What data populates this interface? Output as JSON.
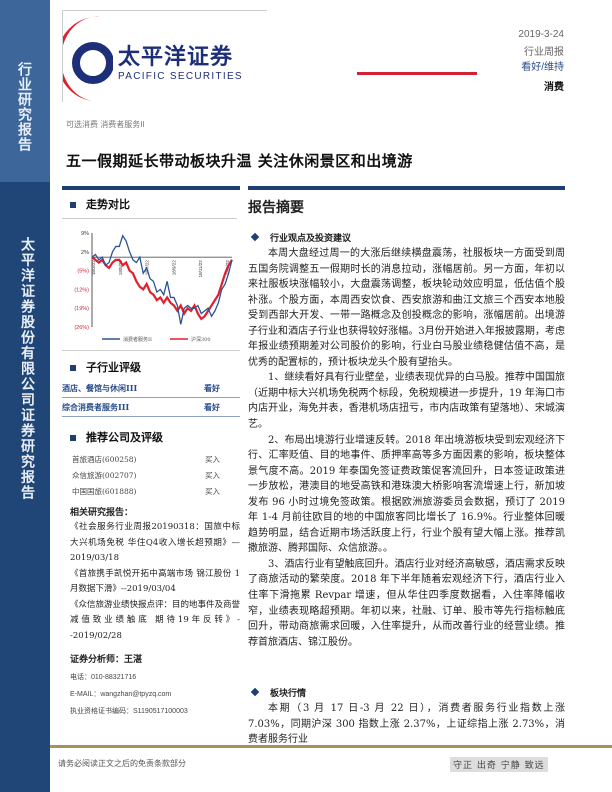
{
  "sidebar": {
    "top_label": "行业研究报告",
    "bottom_label": "太平洋证券股份有限公司证券研究报告"
  },
  "logo": {
    "cn": "太平洋证券",
    "en": "PACIFIC SECURITIES"
  },
  "meta": {
    "date": "2019-3-24",
    "type": "行业周报",
    "rating": "看好/维持",
    "sector": "消费"
  },
  "colors": {
    "brand_blue": "#1f4677",
    "accent_red": "#d32036",
    "rating_blue": "#2a4d8a"
  },
  "breadcrumb": "可选消费 消费者服务II",
  "title": "五一假期延长带动板块升温 关注休闲景区和出境游",
  "left": {
    "trend_title": "走势对比",
    "subindustry_title": "子行业评级",
    "subindustries": [
      {
        "name": "酒店、餐馆与休闲III",
        "rating": "看好"
      },
      {
        "name": "综合消费者服务III",
        "rating": "看好"
      }
    ],
    "recommend_title": "推荐公司及评级",
    "companies": [
      {
        "name": "首旅酒店(600258)",
        "rating": "买入"
      },
      {
        "name": "众信旅游(002707)",
        "rating": "买入"
      },
      {
        "name": "中国国旅(601888)",
        "rating": "买入"
      }
    ],
    "reports_title": "相关研究报告：",
    "reports": [
      "《社会服务行业周报20190318：国旅中标大兴机场免税 华住Q4收入增长超预期》—2019/03/18",
      "《首旅携手凯悦开拓中高端市场 锦江股份 1 月数据下滑》--2019/03/04",
      "《众信旅游业绩快报点评：目的地事件及商誉减值致业绩触底 期待19年反转》--2019/02/28"
    ],
    "analyst_title": "证券分析师：王湛",
    "phone": "电话：010-88321716",
    "email": "E-MAIL：wangzhan@tpyzq.com",
    "cert": "执业资格证书编码：S1190517100003"
  },
  "chart_data": {
    "type": "line",
    "x_ticks": [
      "18/3/22",
      "18/5/22",
      "18/7/22",
      "18/9/22",
      "18/11/22",
      "19/1/22"
    ],
    "y_ticks": [
      "9%",
      "2%",
      "(5%)",
      "(12%)",
      "(19%)",
      "(26%)"
    ],
    "ylim": [
      -26,
      9
    ],
    "series": [
      {
        "name": "消费者服务II",
        "color": "#2a5594",
        "values": [
          0,
          1,
          -1,
          0,
          -3,
          -2,
          2,
          4,
          4,
          8,
          6,
          2,
          -1,
          -2,
          0,
          -6,
          -4,
          -8,
          -9,
          -13,
          -12,
          -14,
          -9,
          -15,
          -15,
          -18,
          -25,
          -19,
          -18,
          -19,
          -19,
          -18,
          -21,
          -20,
          -19,
          -22,
          -20,
          -17,
          -12,
          -10,
          -6,
          -1
        ]
      },
      {
        "name": "沪深300",
        "color": "#e0202e",
        "values": [
          0,
          -1,
          -2,
          -1,
          -3,
          -4,
          -2,
          -1,
          -1,
          -3,
          -2,
          -5,
          -6,
          -9,
          -11,
          -12,
          -10,
          -13,
          -14,
          -16,
          -15,
          -17,
          -15,
          -17,
          -18,
          -20,
          -18,
          -21,
          -19,
          -20,
          -18,
          -21,
          -23,
          -22,
          -20,
          -18,
          -16,
          -14,
          -10,
          -6,
          -3,
          -1
        ]
      }
    ]
  },
  "right": {
    "section_title": "报告摘要",
    "sub1": "行业观点及投资建议",
    "paras": [
      "本周大盘经过周一的大涨后继续横盘震荡，社服板块一方面受到周五国务院调整五一假期时长的消息拉动，涨幅居前。另一方面，年初以来社服板块涨幅较小，大盘震荡调整，板块轮动效应明显，低估值个股补涨。个股方面，本周西安饮食、西安旅游和曲江文旅三个西安本地股受到西部大开发、一带一路概念及创投概念的影响，涨幅居前。出境游子行业和酒店子行业也获得较好涨幅。3月份开始进入年报披露期，考虑年报业绩预期差对公司股价的影响，行业白马股业绩稳健估值不高，是优秀的配置标的，预计板块龙头个股有望抬头。",
      "1、继续看好具有行业壁垒，业绩表现优异的白马股。推荐中国国旅（近期中标大兴机场免税两个标段，免税规模进一步提升，19 年海口市内店开业，海免并表，香港机场店扭亏，市内店政策有望落地）、宋城演艺。",
      "2、布局出境游行业增速反转。2018 年出境游板块受到宏观经济下行、汇率贬值、目的地事件、质押率高等多方面因素的影响，板块整体景气度不高。2019 年泰国免签证费政策促客流回升，日本签证政策进一步放松，港澳目的地受高铁和港珠澳大桥影响客流增速上行，新加坡发布 96 小时过境免签政策。根据欧洲旅游委员会数据，预订了 2019 年 1-4 月前往欧目的地的中国旅客同比增长了 16.9%。行业整体回暖趋势明显，结合近期市场活跃度上行，行业个股有望大幅上涨。推荐凯撒旅游、腾邦国际、众信旅游。。",
      "3、酒店行业有望触底回升。酒店行业对经济高敏感，酒店需求反映了商旅活动的繁荣度。2018 年下半年随着宏观经济下行，酒店行业入住率下滑拖累 Revpar 增速，但从华住四季度数据看，入住率降幅收窄，业绩表现略超预期。年初以来，社融、订单、股市等先行指标触底回升，带动商旅需求回暖，入住率提升，从而改善行业的经营业绩。推荐首旅酒店、锦江股份。"
    ],
    "sub2": "板块行情",
    "market_para": "本期（3 月 17 日-3 月 22 日），消费者服务行业指数上涨 7.03%，同期沪深 300 指数上涨 2.37%，上证综指上涨 2.73%，消费者服务行业"
  },
  "footer": {
    "disclaimer": "请务必阅读正文之后的免责条款部分",
    "motto": "守正 出奇 宁静 致远"
  }
}
